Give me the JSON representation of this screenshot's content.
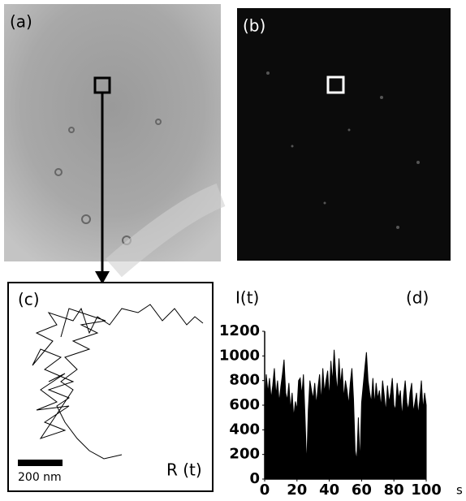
{
  "panels": {
    "a": "(a)",
    "b": "(b)",
    "c": "(c)",
    "scale_bar": "200 nm",
    "trajectory_label": "R (t)"
  },
  "chart_data": {
    "type": "area",
    "panel_label": "(d)",
    "y_label": "I(t)",
    "x_label": "s",
    "color": "#000000",
    "xlim": [
      0,
      100
    ],
    "ylim": [
      0,
      1200
    ],
    "xticks": [
      0,
      20,
      40,
      60,
      80,
      100
    ],
    "yticks": [
      0,
      200,
      400,
      600,
      800,
      1000,
      1200
    ],
    "x": [
      0,
      1,
      2,
      3,
      4,
      5,
      6,
      7,
      8,
      9,
      10,
      11,
      12,
      13,
      14,
      15,
      16,
      17,
      18,
      19,
      20,
      21,
      22,
      23,
      24,
      25,
      26,
      27,
      28,
      29,
      30,
      31,
      32,
      33,
      34,
      35,
      36,
      37,
      38,
      39,
      40,
      41,
      42,
      43,
      44,
      45,
      46,
      47,
      48,
      49,
      50,
      51,
      52,
      53,
      54,
      55,
      56,
      57,
      58,
      59,
      60,
      61,
      62,
      63,
      64,
      65,
      66,
      67,
      68,
      69,
      70,
      71,
      72,
      73,
      74,
      75,
      76,
      77,
      78,
      79,
      80,
      81,
      82,
      83,
      84,
      85,
      86,
      87,
      88,
      89,
      90,
      91,
      92,
      93,
      94,
      95,
      96,
      97,
      98,
      99,
      100
    ],
    "values": [
      580,
      850,
      700,
      820,
      650,
      760,
      900,
      680,
      800,
      620,
      750,
      850,
      970,
      700,
      640,
      780,
      560,
      700,
      500,
      630,
      560,
      800,
      820,
      680,
      850,
      500,
      100,
      560,
      800,
      720,
      650,
      780,
      600,
      740,
      850,
      620,
      900,
      700,
      800,
      880,
      650,
      960,
      780,
      1050,
      850,
      700,
      980,
      760,
      900,
      650,
      800,
      720,
      600,
      780,
      900,
      650,
      230,
      150,
      500,
      120,
      620,
      760,
      900,
      1030,
      800,
      700,
      620,
      820,
      600,
      780,
      650,
      720,
      580,
      800,
      680,
      540,
      760,
      620,
      700,
      820,
      600,
      560,
      780,
      650,
      720,
      500,
      680,
      800,
      620,
      560,
      700,
      780,
      540,
      620,
      700,
      520,
      640,
      800,
      560,
      700,
      600
    ]
  }
}
